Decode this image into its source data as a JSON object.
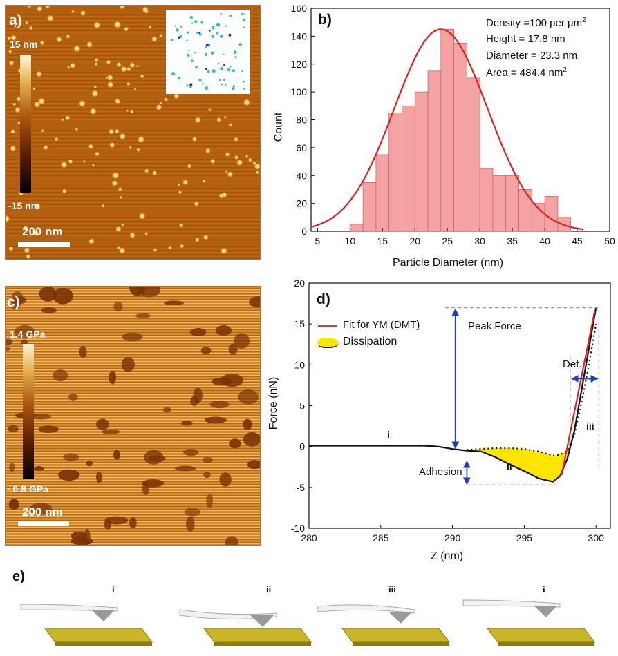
{
  "panel_a": {
    "label": "a)",
    "colorbar_top": "15 nm",
    "colorbar_bottom": "-15 nm",
    "scalebar": "200 nm"
  },
  "panel_b": {
    "label": "b)",
    "annotations": [
      {
        "pre": "Density =100 per ",
        "mid": "μm",
        "sup": "2"
      },
      {
        "pre": "Height = 17.8 nm",
        "mid": "",
        "sup": ""
      },
      {
        "pre": "Diameter = 23.3 nm",
        "mid": "",
        "sup": ""
      },
      {
        "pre": "Area = 484.4 nm",
        "mid": "",
        "sup": "2"
      }
    ]
  },
  "panel_c": {
    "label": "c)",
    "colorbar_top": "1.4 GPa",
    "colorbar_bottom": "- 0.8 GPa",
    "scalebar": "200 nm"
  },
  "panel_d": {
    "label": "d)",
    "legend": [
      "Fit for YM (DMT)",
      "Dissipation"
    ],
    "annotations": {
      "peak_force": "Peak Force",
      "adhesion": "Adhesion",
      "deformation": "Def.",
      "roman_i": "i",
      "roman_ii": "ii",
      "roman_iii": "iii"
    }
  },
  "panel_e": {
    "label": "e)",
    "stages": [
      "i",
      "ii",
      "iii",
      "i"
    ]
  },
  "colors": {
    "bar_fill": "#f4a3a3",
    "bar_edge": "#c66",
    "fit_curve": "#e02020",
    "dissipation": "#ffe400",
    "arrow": "#1f3fb5",
    "dashed_box": "#999999",
    "afm_bg": "#b25a10",
    "substrate": "#c9b42a"
  },
  "chart_data": [
    {
      "type": "bar",
      "xlabel": "Particle Diameter (nm)",
      "ylabel": "Count",
      "xlim": [
        4,
        50
      ],
      "ylim": [
        0,
        160
      ],
      "xticks": [
        5,
        10,
        15,
        20,
        25,
        30,
        35,
        40,
        45,
        50
      ],
      "yticks": [
        0,
        20,
        40,
        60,
        80,
        100,
        120,
        140,
        160
      ],
      "bin_width": 2,
      "bins_start": [
        10,
        12,
        14,
        16,
        18,
        20,
        22,
        24,
        26,
        28,
        30,
        32,
        34,
        36,
        38,
        40,
        42
      ],
      "values": [
        5,
        35,
        55,
        85,
        90,
        100,
        115,
        145,
        135,
        110,
        45,
        40,
        40,
        30,
        20,
        25,
        10
      ],
      "fit": {
        "type": "gaussian",
        "mean": 24,
        "sigma": 7.2,
        "amplitude": 145
      }
    },
    {
      "type": "line",
      "xlabel": "Z (nm)",
      "ylabel": "Force (nN)",
      "xlim": [
        280,
        301
      ],
      "ylim": [
        -10,
        20
      ],
      "xticks": [
        280,
        285,
        290,
        295,
        300
      ],
      "yticks": [
        -10,
        -5,
        0,
        5,
        10,
        15,
        20
      ],
      "series": [
        {
          "style": "solid",
          "x": [
            280,
            282,
            284,
            286,
            288,
            289,
            290,
            291,
            292,
            293,
            294,
            295,
            296,
            297,
            297.5,
            298,
            298.5,
            299,
            299.5,
            300
          ],
          "y": [
            0.1,
            0.1,
            0.1,
            0.1,
            0.1,
            0.0,
            -0.3,
            -0.5,
            -0.6,
            -1.3,
            -2.2,
            -3.0,
            -3.9,
            -4.3,
            -3.6,
            -1.5,
            2.0,
            7.0,
            12.0,
            17.0
          ]
        },
        {
          "style": "dotted",
          "x": [
            291,
            292,
            293,
            294,
            295,
            296,
            297,
            297.5,
            298,
            298.5,
            299,
            299.5,
            300
          ],
          "y": [
            -0.4,
            -0.3,
            -0.2,
            -0.2,
            -0.3,
            -0.6,
            -1.1,
            -1.0,
            -0.5,
            1.5,
            5.5,
            10.0,
            15.0
          ]
        },
        {
          "style": "fit",
          "x": [
            297.6,
            299.9
          ],
          "y": [
            -3.5,
            16.5
          ]
        }
      ]
    }
  ]
}
